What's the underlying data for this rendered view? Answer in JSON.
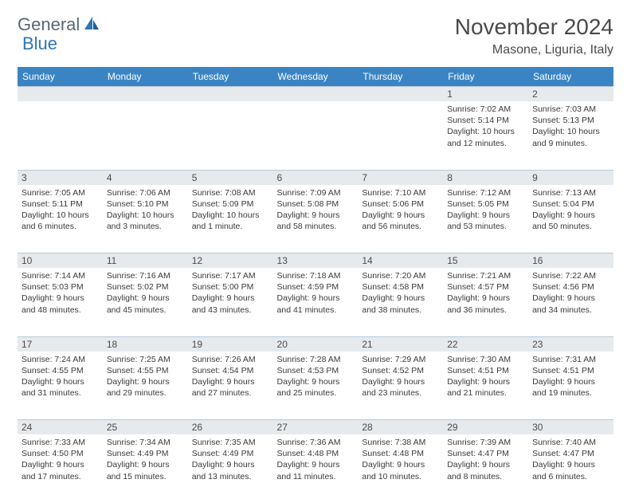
{
  "brand": {
    "part1": "General",
    "part2": "Blue"
  },
  "title": "November 2024",
  "location": "Masone, Liguria, Italy",
  "colors": {
    "header_bg": "#3a84c4",
    "header_text": "#ffffff",
    "daynum_bg": "#e6eaed",
    "border": "#b7c8d6",
    "logo_gray": "#5a6770",
    "logo_blue": "#2b77b8"
  },
  "day_headers": [
    "Sunday",
    "Monday",
    "Tuesday",
    "Wednesday",
    "Thursday",
    "Friday",
    "Saturday"
  ],
  "weeks": [
    [
      null,
      null,
      null,
      null,
      null,
      {
        "n": "1",
        "sr": "Sunrise: 7:02 AM",
        "ss": "Sunset: 5:14 PM",
        "dl": "Daylight: 10 hours and 12 minutes."
      },
      {
        "n": "2",
        "sr": "Sunrise: 7:03 AM",
        "ss": "Sunset: 5:13 PM",
        "dl": "Daylight: 10 hours and 9 minutes."
      }
    ],
    [
      {
        "n": "3",
        "sr": "Sunrise: 7:05 AM",
        "ss": "Sunset: 5:11 PM",
        "dl": "Daylight: 10 hours and 6 minutes."
      },
      {
        "n": "4",
        "sr": "Sunrise: 7:06 AM",
        "ss": "Sunset: 5:10 PM",
        "dl": "Daylight: 10 hours and 3 minutes."
      },
      {
        "n": "5",
        "sr": "Sunrise: 7:08 AM",
        "ss": "Sunset: 5:09 PM",
        "dl": "Daylight: 10 hours and 1 minute."
      },
      {
        "n": "6",
        "sr": "Sunrise: 7:09 AM",
        "ss": "Sunset: 5:08 PM",
        "dl": "Daylight: 9 hours and 58 minutes."
      },
      {
        "n": "7",
        "sr": "Sunrise: 7:10 AM",
        "ss": "Sunset: 5:06 PM",
        "dl": "Daylight: 9 hours and 56 minutes."
      },
      {
        "n": "8",
        "sr": "Sunrise: 7:12 AM",
        "ss": "Sunset: 5:05 PM",
        "dl": "Daylight: 9 hours and 53 minutes."
      },
      {
        "n": "9",
        "sr": "Sunrise: 7:13 AM",
        "ss": "Sunset: 5:04 PM",
        "dl": "Daylight: 9 hours and 50 minutes."
      }
    ],
    [
      {
        "n": "10",
        "sr": "Sunrise: 7:14 AM",
        "ss": "Sunset: 5:03 PM",
        "dl": "Daylight: 9 hours and 48 minutes."
      },
      {
        "n": "11",
        "sr": "Sunrise: 7:16 AM",
        "ss": "Sunset: 5:02 PM",
        "dl": "Daylight: 9 hours and 45 minutes."
      },
      {
        "n": "12",
        "sr": "Sunrise: 7:17 AM",
        "ss": "Sunset: 5:00 PM",
        "dl": "Daylight: 9 hours and 43 minutes."
      },
      {
        "n": "13",
        "sr": "Sunrise: 7:18 AM",
        "ss": "Sunset: 4:59 PM",
        "dl": "Daylight: 9 hours and 41 minutes."
      },
      {
        "n": "14",
        "sr": "Sunrise: 7:20 AM",
        "ss": "Sunset: 4:58 PM",
        "dl": "Daylight: 9 hours and 38 minutes."
      },
      {
        "n": "15",
        "sr": "Sunrise: 7:21 AM",
        "ss": "Sunset: 4:57 PM",
        "dl": "Daylight: 9 hours and 36 minutes."
      },
      {
        "n": "16",
        "sr": "Sunrise: 7:22 AM",
        "ss": "Sunset: 4:56 PM",
        "dl": "Daylight: 9 hours and 34 minutes."
      }
    ],
    [
      {
        "n": "17",
        "sr": "Sunrise: 7:24 AM",
        "ss": "Sunset: 4:55 PM",
        "dl": "Daylight: 9 hours and 31 minutes."
      },
      {
        "n": "18",
        "sr": "Sunrise: 7:25 AM",
        "ss": "Sunset: 4:55 PM",
        "dl": "Daylight: 9 hours and 29 minutes."
      },
      {
        "n": "19",
        "sr": "Sunrise: 7:26 AM",
        "ss": "Sunset: 4:54 PM",
        "dl": "Daylight: 9 hours and 27 minutes."
      },
      {
        "n": "20",
        "sr": "Sunrise: 7:28 AM",
        "ss": "Sunset: 4:53 PM",
        "dl": "Daylight: 9 hours and 25 minutes."
      },
      {
        "n": "21",
        "sr": "Sunrise: 7:29 AM",
        "ss": "Sunset: 4:52 PM",
        "dl": "Daylight: 9 hours and 23 minutes."
      },
      {
        "n": "22",
        "sr": "Sunrise: 7:30 AM",
        "ss": "Sunset: 4:51 PM",
        "dl": "Daylight: 9 hours and 21 minutes."
      },
      {
        "n": "23",
        "sr": "Sunrise: 7:31 AM",
        "ss": "Sunset: 4:51 PM",
        "dl": "Daylight: 9 hours and 19 minutes."
      }
    ],
    [
      {
        "n": "24",
        "sr": "Sunrise: 7:33 AM",
        "ss": "Sunset: 4:50 PM",
        "dl": "Daylight: 9 hours and 17 minutes."
      },
      {
        "n": "25",
        "sr": "Sunrise: 7:34 AM",
        "ss": "Sunset: 4:49 PM",
        "dl": "Daylight: 9 hours and 15 minutes."
      },
      {
        "n": "26",
        "sr": "Sunrise: 7:35 AM",
        "ss": "Sunset: 4:49 PM",
        "dl": "Daylight: 9 hours and 13 minutes."
      },
      {
        "n": "27",
        "sr": "Sunrise: 7:36 AM",
        "ss": "Sunset: 4:48 PM",
        "dl": "Daylight: 9 hours and 11 minutes."
      },
      {
        "n": "28",
        "sr": "Sunrise: 7:38 AM",
        "ss": "Sunset: 4:48 PM",
        "dl": "Daylight: 9 hours and 10 minutes."
      },
      {
        "n": "29",
        "sr": "Sunrise: 7:39 AM",
        "ss": "Sunset: 4:47 PM",
        "dl": "Daylight: 9 hours and 8 minutes."
      },
      {
        "n": "30",
        "sr": "Sunrise: 7:40 AM",
        "ss": "Sunset: 4:47 PM",
        "dl": "Daylight: 9 hours and 6 minutes."
      }
    ]
  ]
}
